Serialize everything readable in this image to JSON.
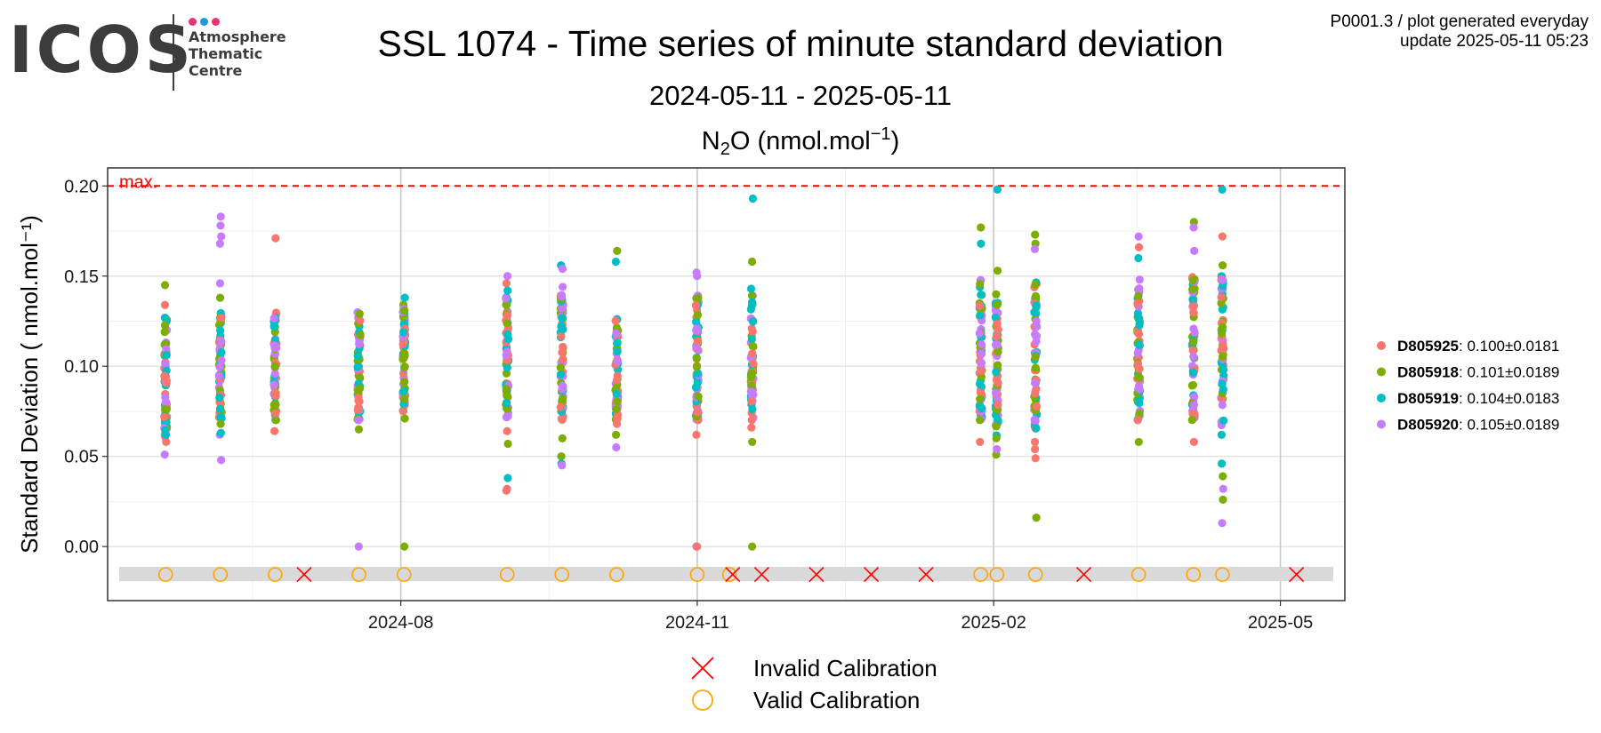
{
  "header": {
    "logo_text": "ICOS",
    "logo_subtitle": [
      "Atmosphere",
      "Thematic",
      "Centre"
    ],
    "logo_dot_colors": [
      "#e8336d",
      "#1a9ae0",
      "#e8336d"
    ],
    "info_line1": "P0001.3 / plot generated everyday",
    "info_line2": "update  2025-05-11 05:23",
    "title": "SSL 1074 - Time series of minute standard deviation",
    "date_range": "2024-05-11 - 2025-05-11"
  },
  "chart_data": {
    "type": "scatter",
    "title_parts": {
      "species": "N",
      "sub": "2",
      "rest": "O (nmol.mol",
      "sup": "−1",
      "close": ")"
    },
    "ylabel": "Standard Deviation ( nmol.mol⁻¹)",
    "xlabel": "",
    "xlim": [
      "2024-05-11",
      "2025-05-11"
    ],
    "ylim": [
      -0.03,
      0.21
    ],
    "x_ticks": [
      "2024-08",
      "2024-11",
      "2025-02",
      "2025-05"
    ],
    "y_ticks": [
      "0.00",
      "0.05",
      "0.10",
      "0.15",
      "0.20"
    ],
    "y_tick_values": [
      0.0,
      0.05,
      0.1,
      0.15,
      0.2
    ],
    "grid": true,
    "threshold": {
      "label": "max.",
      "value": 0.2,
      "color": "#ff0000"
    },
    "series": [
      {
        "name": "D805925",
        "stat": ": 0.100±0.0181",
        "color": "#f8766d"
      },
      {
        "name": "D805918",
        "stat": ": 0.101±0.0189",
        "color": "#7cae00"
      },
      {
        "name": "D805919",
        "stat": ": 0.104±0.0183",
        "color": "#00bfc4"
      },
      {
        "name": "D805920",
        "stat": ": 0.105±0.0189",
        "color": "#c77cff"
      }
    ],
    "clusters": [
      {
        "date": "2024-05-20",
        "min": 0.06,
        "max": 0.13,
        "extremes": [
          [
            0,
            0.058
          ],
          [
            0,
            0.134
          ],
          [
            1,
            0.145
          ],
          [
            3,
            0.051
          ],
          [
            2,
            0.062
          ]
        ]
      },
      {
        "date": "2024-06-06",
        "min": 0.07,
        "max": 0.13,
        "extremes": [
          [
            3,
            0.183
          ],
          [
            3,
            0.178
          ],
          [
            3,
            0.172
          ],
          [
            3,
            0.168
          ],
          [
            1,
            0.138
          ],
          [
            3,
            0.146
          ],
          [
            3,
            0.062
          ],
          [
            3,
            0.048
          ],
          [
            1,
            0.068
          ],
          [
            2,
            0.063
          ]
        ]
      },
      {
        "date": "2024-06-23",
        "min": 0.07,
        "max": 0.13,
        "extremes": [
          [
            0,
            0.171
          ],
          [
            0,
            0.064
          ]
        ]
      },
      {
        "date": "2024-07-19",
        "min": 0.07,
        "max": 0.13,
        "extremes": [
          [
            1,
            0.065
          ],
          [
            3,
            0.0
          ]
        ]
      },
      {
        "date": "2024-08-02",
        "min": 0.075,
        "max": 0.135,
        "extremes": [
          [
            2,
            0.138
          ],
          [
            1,
            0.0
          ],
          [
            1,
            0.071
          ]
        ]
      },
      {
        "date": "2024-09-03",
        "min": 0.07,
        "max": 0.14,
        "extremes": [
          [
            3,
            0.15
          ],
          [
            0,
            0.146
          ],
          [
            2,
            0.142
          ],
          [
            0,
            0.064
          ],
          [
            1,
            0.057
          ],
          [
            2,
            0.038
          ],
          [
            0,
            0.032
          ],
          [
            0,
            0.031
          ]
        ]
      },
      {
        "date": "2024-09-20",
        "min": 0.07,
        "max": 0.14,
        "extremes": [
          [
            2,
            0.156
          ],
          [
            3,
            0.154
          ],
          [
            3,
            0.144
          ],
          [
            1,
            0.06
          ],
          [
            1,
            0.05
          ],
          [
            2,
            0.046
          ],
          [
            3,
            0.045
          ]
        ]
      },
      {
        "date": "2024-10-07",
        "min": 0.07,
        "max": 0.13,
        "extremes": [
          [
            1,
            0.164
          ],
          [
            2,
            0.158
          ],
          [
            0,
            0.068
          ],
          [
            1,
            0.062
          ],
          [
            3,
            0.055
          ]
        ]
      },
      {
        "date": "2024-11-01",
        "min": 0.07,
        "max": 0.14,
        "extremes": [
          [
            3,
            0.152
          ],
          [
            3,
            0.15
          ],
          [
            0,
            0.062
          ],
          [
            3,
            0.0
          ],
          [
            0,
            0.0
          ]
        ]
      },
      {
        "date": "2024-11-18",
        "min": 0.07,
        "max": 0.14,
        "extremes": [
          [
            2,
            0.193
          ],
          [
            1,
            0.158
          ],
          [
            2,
            0.143
          ],
          [
            0,
            0.066
          ],
          [
            1,
            0.058
          ],
          [
            1,
            0.0
          ]
        ]
      },
      {
        "date": "2025-01-28",
        "min": 0.07,
        "max": 0.15,
        "extremes": [
          [
            1,
            0.177
          ],
          [
            2,
            0.168
          ],
          [
            0,
            0.058
          ]
        ]
      },
      {
        "date": "2025-02-02",
        "min": 0.06,
        "max": 0.14,
        "extremes": [
          [
            2,
            0.198
          ],
          [
            1,
            0.153
          ],
          [
            1,
            0.051
          ],
          [
            3,
            0.054
          ]
        ]
      },
      {
        "date": "2025-02-14",
        "min": 0.065,
        "max": 0.15,
        "extremes": [
          [
            1,
            0.173
          ],
          [
            1,
            0.168
          ],
          [
            3,
            0.165
          ],
          [
            0,
            0.058
          ],
          [
            0,
            0.054
          ],
          [
            0,
            0.049
          ],
          [
            1,
            0.016
          ]
        ]
      },
      {
        "date": "2025-03-18",
        "min": 0.07,
        "max": 0.15,
        "extremes": [
          [
            3,
            0.172
          ],
          [
            0,
            0.166
          ],
          [
            2,
            0.16
          ],
          [
            1,
            0.058
          ]
        ]
      },
      {
        "date": "2025-04-04",
        "min": 0.07,
        "max": 0.15,
        "extremes": [
          [
            1,
            0.18
          ],
          [
            3,
            0.177
          ],
          [
            3,
            0.164
          ],
          [
            0,
            0.058
          ]
        ]
      },
      {
        "date": "2025-04-13",
        "min": 0.065,
        "max": 0.15,
        "extremes": [
          [
            2,
            0.198
          ],
          [
            0,
            0.172
          ],
          [
            1,
            0.156
          ],
          [
            2,
            0.062
          ],
          [
            2,
            0.046
          ],
          [
            1,
            0.039
          ],
          [
            3,
            0.032
          ],
          [
            1,
            0.026
          ],
          [
            3,
            0.013
          ]
        ]
      }
    ],
    "calibration_band": {
      "color": "#d9d9d9"
    },
    "valid_calibrations": [
      "2024-05-20",
      "2024-06-06",
      "2024-06-23",
      "2024-07-19",
      "2024-08-02",
      "2024-09-03",
      "2024-09-20",
      "2024-10-07",
      "2024-11-01",
      "2024-11-11",
      "2025-01-28",
      "2025-02-02",
      "2025-02-14",
      "2025-03-18",
      "2025-04-04",
      "2025-04-13"
    ],
    "invalid_calibrations": [
      "2024-07-02",
      "2024-11-12",
      "2024-11-21",
      "2024-12-08",
      "2024-12-25",
      "2025-01-11",
      "2025-03-01",
      "2025-05-06"
    ],
    "calibration_legend": [
      {
        "label": "Invalid Calibration",
        "symbol": "cross",
        "color": "#ff0000"
      },
      {
        "label": "Valid Calibration",
        "symbol": "circle",
        "color": "#ffa500"
      }
    ]
  }
}
